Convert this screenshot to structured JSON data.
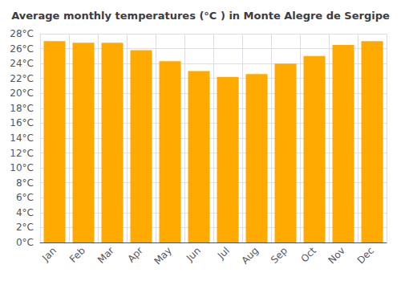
{
  "chart_data": {
    "type": "bar",
    "title": "Average monthly temperatures (°C ) in Monte Alegre de Sergipe",
    "categories": [
      "Jan",
      "Feb",
      "Mar",
      "Apr",
      "May",
      "Jun",
      "Jul",
      "Aug",
      "Sep",
      "Oct",
      "Nov",
      "Dec"
    ],
    "values": [
      27.0,
      26.8,
      26.8,
      25.8,
      24.3,
      23.0,
      22.2,
      22.6,
      24.0,
      25.0,
      26.5,
      27.0
    ],
    "color": "#FFAA00",
    "ylim": [
      0,
      28
    ],
    "yticks": [
      {
        "value": 0,
        "label": "0°C"
      },
      {
        "value": 2,
        "label": "2°C"
      },
      {
        "value": 4,
        "label": "4°C"
      },
      {
        "value": 6,
        "label": "6°C"
      },
      {
        "value": 8,
        "label": "8°C"
      },
      {
        "value": 10,
        "label": "10°C"
      },
      {
        "value": 12,
        "label": "12°C"
      },
      {
        "value": 14,
        "label": "14°C"
      },
      {
        "value": 16,
        "label": "16°C"
      },
      {
        "value": 18,
        "label": "18°C"
      },
      {
        "value": 20,
        "label": "20°C"
      },
      {
        "value": 22,
        "label": "22°C"
      },
      {
        "value": 24,
        "label": "24°C"
      },
      {
        "value": 26,
        "label": "26°C"
      },
      {
        "value": 28,
        "label": "28°C"
      }
    ],
    "grid": true
  }
}
